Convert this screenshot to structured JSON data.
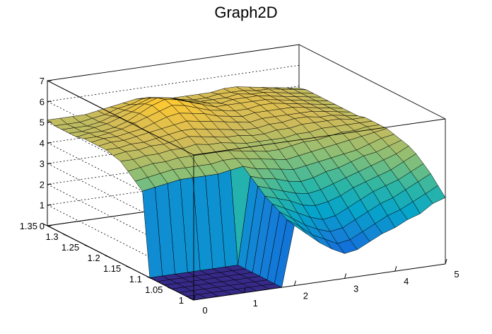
{
  "chart_data": {
    "type": "surface",
    "title": "Graph2D",
    "palette": "kBird",
    "palette_colors": [
      "#352a87",
      "#0f5cdd",
      "#1481d6",
      "#06a4ca",
      "#2eb7a4",
      "#87bf77",
      "#d1bb59",
      "#fec832",
      "#f9fb0e"
    ],
    "xlim": [
      0,
      5
    ],
    "ylim": [
      1,
      1.35
    ],
    "zlim": [
      0,
      7
    ],
    "x_ticks": [
      "0",
      "1",
      "2",
      "3",
      "4",
      "5"
    ],
    "y_ticks": [
      "1",
      "1.05",
      "1.1",
      "1.15",
      "1.2",
      "1.25",
      "1.3",
      "1.35"
    ],
    "z_ticks": [
      "0",
      "1",
      "2",
      "3",
      "4",
      "5",
      "6",
      "7"
    ],
    "grid": true,
    "x": [
      0,
      0.25,
      0.5,
      0.75,
      1,
      1.25,
      1.5,
      1.75,
      2,
      2.25,
      2.5,
      2.75,
      3,
      3.25,
      3.5,
      3.75,
      4,
      4.25,
      4.5,
      4.75,
      5
    ],
    "y": [
      1,
      1.0175,
      1.035,
      1.0525,
      1.07,
      1.0875,
      1.105,
      1.1225,
      1.14,
      1.1575,
      1.175,
      1.1925,
      1.21,
      1.2275,
      1.245,
      1.2625,
      1.28,
      1.2975,
      1.315,
      1.3325,
      1.35
    ],
    "z": [
      [
        0,
        0,
        0,
        0,
        0,
        0,
        0,
        0,
        2.9,
        2.4,
        1.9,
        1.5,
        1.2,
        1.3,
        1.6,
        1.9,
        2.1,
        2.4,
        2.6,
        3.0,
        3.2
      ],
      [
        0,
        0,
        0,
        0,
        0,
        0,
        0,
        0,
        3.0,
        2.6,
        2.1,
        1.8,
        1.5,
        1.6,
        1.9,
        2.2,
        2.5,
        2.7,
        3.0,
        3.3,
        3.6
      ],
      [
        0,
        0,
        0,
        0,
        0,
        0,
        0,
        0,
        3.2,
        2.8,
        2.4,
        2.1,
        1.9,
        2.0,
        2.3,
        2.6,
        2.9,
        3.1,
        3.4,
        3.7,
        4.0
      ],
      [
        0,
        0,
        0,
        0,
        0,
        0,
        0,
        0,
        3.4,
        3.1,
        2.8,
        2.5,
        2.3,
        2.4,
        2.7,
        3.0,
        3.3,
        3.5,
        3.7,
        4.0,
        4.3
      ],
      [
        0,
        0,
        0,
        0,
        0,
        0,
        0,
        0,
        3.6,
        3.4,
        3.2,
        2.9,
        2.8,
        2.9,
        3.1,
        3.4,
        3.6,
        3.8,
        4.0,
        4.3,
        4.6
      ],
      [
        0,
        0,
        0,
        0,
        0,
        0,
        0,
        0,
        3.9,
        3.7,
        3.5,
        3.3,
        3.2,
        3.3,
        3.5,
        3.7,
        3.9,
        4.1,
        4.3,
        4.5,
        4.8
      ],
      [
        0,
        0,
        0,
        0,
        0,
        0,
        0,
        0,
        4.2,
        4.0,
        3.9,
        3.7,
        3.6,
        3.7,
        3.9,
        4.0,
        4.2,
        4.4,
        4.5,
        4.7,
        4.9
      ],
      [
        4.0,
        4.1,
        4.2,
        4.3,
        4.3,
        4.3,
        4.3,
        4.4,
        4.5,
        4.3,
        4.2,
        4.1,
        4.0,
        4.1,
        4.2,
        4.3,
        4.4,
        4.5,
        4.7,
        4.9,
        5.0
      ],
      [
        4.3,
        4.4,
        4.5,
        4.6,
        4.6,
        4.6,
        4.6,
        4.7,
        4.7,
        4.6,
        4.5,
        4.4,
        4.3,
        4.4,
        4.5,
        4.6,
        4.7,
        4.8,
        4.9,
        5.0,
        5.1
      ],
      [
        4.6,
        4.7,
        4.8,
        4.8,
        4.9,
        4.9,
        4.9,
        4.9,
        4.9,
        4.8,
        4.7,
        4.6,
        4.6,
        4.7,
        4.8,
        4.8,
        4.9,
        5.0,
        5.0,
        5.1,
        5.1
      ],
      [
        4.9,
        4.9,
        5.0,
        5.0,
        5.1,
        5.1,
        5.2,
        5.1,
        5.1,
        5.0,
        4.9,
        4.9,
        4.9,
        4.9,
        5.0,
        5.0,
        5.1,
        5.1,
        5.1,
        5.1,
        5.1
      ],
      [
        5.0,
        5.1,
        5.1,
        5.2,
        5.2,
        5.3,
        5.4,
        5.3,
        5.2,
        5.1,
        5.1,
        5.0,
        5.0,
        5.1,
        5.1,
        5.2,
        5.2,
        5.2,
        5.2,
        5.1,
        5.1
      ],
      [
        5.1,
        5.1,
        5.2,
        5.2,
        5.3,
        5.4,
        5.5,
        5.5,
        5.4,
        5.3,
        5.2,
        5.1,
        5.1,
        5.2,
        5.2,
        5.3,
        5.3,
        5.2,
        5.2,
        5.1,
        5.0
      ],
      [
        5.1,
        5.2,
        5.2,
        5.3,
        5.4,
        5.5,
        5.6,
        5.7,
        5.6,
        5.5,
        5.4,
        5.3,
        5.2,
        5.3,
        5.3,
        5.3,
        5.3,
        5.3,
        5.2,
        5.1,
        5.0
      ],
      [
        5.1,
        5.2,
        5.2,
        5.3,
        5.4,
        5.6,
        5.8,
        5.9,
        5.8,
        5.7,
        5.5,
        5.4,
        5.3,
        5.4,
        5.4,
        5.4,
        5.4,
        5.3,
        5.2,
        5.1,
        5.0
      ],
      [
        5.1,
        5.1,
        5.2,
        5.3,
        5.5,
        5.7,
        5.9,
        6.1,
        6.0,
        5.8,
        5.6,
        5.5,
        5.4,
        5.4,
        5.5,
        5.5,
        5.4,
        5.3,
        5.2,
        5.1,
        5.0
      ],
      [
        5.0,
        5.1,
        5.1,
        5.2,
        5.4,
        5.7,
        6.0,
        6.2,
        6.1,
        5.9,
        5.7,
        5.5,
        5.5,
        5.5,
        5.5,
        5.5,
        5.4,
        5.3,
        5.2,
        5.1,
        5.0
      ],
      [
        5.0,
        5.0,
        5.1,
        5.2,
        5.4,
        5.6,
        5.9,
        6.1,
        6.0,
        5.8,
        5.6,
        5.5,
        5.4,
        5.5,
        5.5,
        5.5,
        5.4,
        5.3,
        5.2,
        5.1,
        5.0
      ],
      [
        5.0,
        5.0,
        5.0,
        5.1,
        5.3,
        5.5,
        5.7,
        5.9,
        5.8,
        5.7,
        5.5,
        5.4,
        5.4,
        5.4,
        5.5,
        5.4,
        5.4,
        5.3,
        5.2,
        5.1,
        5.0
      ],
      [
        5.0,
        5.0,
        5.0,
        5.1,
        5.2,
        5.4,
        5.5,
        5.7,
        5.6,
        5.5,
        5.4,
        5.3,
        5.3,
        5.4,
        5.4,
        5.4,
        5.3,
        5.3,
        5.2,
        5.1,
        5.0
      ],
      [
        5.1,
        5.1,
        5.1,
        5.1,
        5.2,
        5.3,
        5.4,
        5.5,
        5.5,
        5.4,
        5.3,
        5.3,
        5.3,
        5.3,
        5.4,
        5.4,
        5.3,
        5.2,
        5.1,
        5.0,
        4.9
      ]
    ]
  }
}
